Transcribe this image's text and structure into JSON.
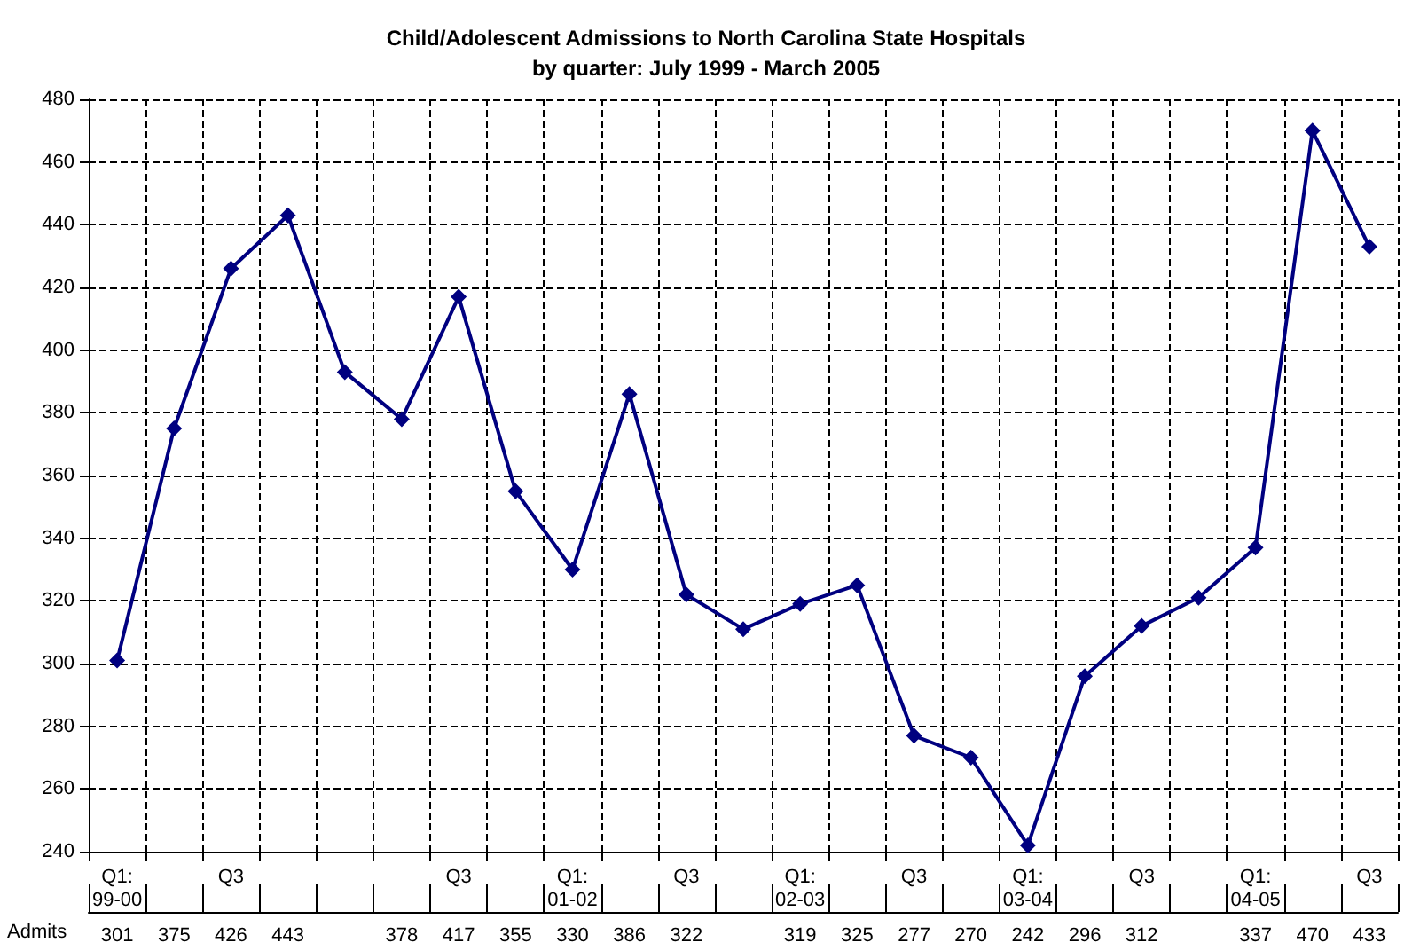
{
  "chart_data": {
    "type": "line",
    "title": "Child/Adolescent Admissions to North Carolina State Hospitals\nby quarter: July 1999 - March 2005",
    "categories": [
      "Q1: 99-00",
      null,
      "Q3",
      null,
      null,
      null,
      "Q3",
      null,
      "Q1: 01-02",
      null,
      "Q3",
      null,
      "Q1: 02-03",
      null,
      "Q3",
      null,
      "Q1: 03-04",
      null,
      "Q3",
      null,
      "Q1: 04-05",
      null,
      "Q3"
    ],
    "series": [
      {
        "color": "#000080",
        "values": [
          301,
          375,
          426,
          443,
          393,
          378,
          417,
          355,
          330,
          386,
          322,
          311,
          319,
          325,
          277,
          270,
          242,
          296,
          312,
          321,
          337,
          470,
          433
        ],
        "value_labels": [
          "301",
          "375",
          "426",
          "443",
          null,
          "378",
          "417",
          "355",
          "330",
          "386",
          "322",
          null,
          "319",
          "325",
          "277",
          "270",
          "242",
          "296",
          "312",
          null,
          "337",
          "470",
          "433"
        ]
      }
    ],
    "ylim": [
      240,
      480
    ],
    "yticks": [
      240,
      260,
      280,
      300,
      320,
      340,
      360,
      380,
      400,
      420,
      440,
      460,
      480
    ],
    "grid": true,
    "marker": "diamond",
    "line_style": "solid",
    "annotations": [
      "Admits"
    ]
  }
}
